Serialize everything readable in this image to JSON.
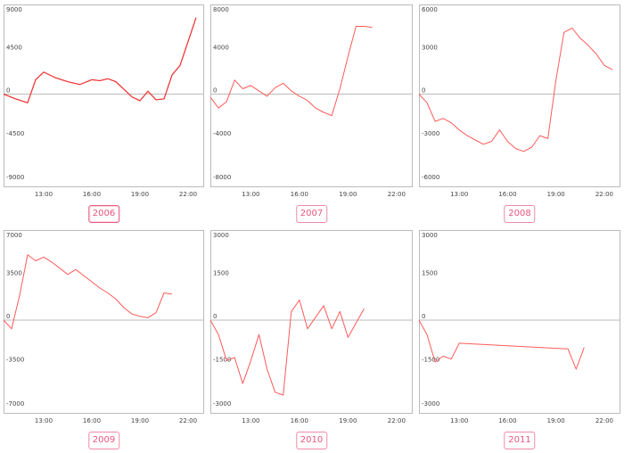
{
  "colors": {
    "line": "#ff5a5a",
    "line_active": "#f03a3a",
    "frame": "#bbbbbb",
    "zero_line": "#bbbbbb",
    "badge_border": "#f08aa6",
    "badge_text": "#e9557e"
  },
  "active_year": "2006",
  "chart_data": [
    {
      "type": "line",
      "title": "2006",
      "ylim": [
        -9000,
        9000
      ],
      "yticks": [
        9000,
        4500,
        0,
        -4500,
        -9000
      ],
      "xlim": [
        10.5,
        23.0
      ],
      "xticks": [
        13,
        16,
        19,
        22
      ],
      "xtick_labels": [
        "13:00",
        "16:00",
        "19:00",
        "22:00"
      ],
      "x": [
        10.5,
        11.25,
        12.0,
        12.5,
        13.0,
        13.75,
        14.5,
        15.25,
        16.0,
        16.5,
        17.0,
        17.5,
        18.0,
        18.5,
        19.0,
        19.5,
        20.0,
        20.5,
        21.0,
        21.5,
        22.0,
        22.5
      ],
      "values": [
        0,
        -500,
        -900,
        1500,
        2300,
        1700,
        1300,
        1000,
        1500,
        1400,
        1600,
        1300,
        500,
        -300,
        -700,
        300,
        -600,
        -500,
        2000,
        3000,
        5500,
        8000
      ]
    },
    {
      "type": "line",
      "title": "2007",
      "ylim": [
        -8000,
        8000
      ],
      "yticks": [
        8000,
        4000,
        0,
        -4000,
        -8000
      ],
      "xlim": [
        10.5,
        23.0
      ],
      "xticks": [
        13,
        16,
        19,
        22
      ],
      "xtick_labels": [
        "13:00",
        "16:00",
        "19:00",
        "22:00"
      ],
      "x": [
        10.5,
        11.0,
        11.5,
        12.0,
        12.5,
        13.0,
        13.5,
        14.0,
        14.5,
        15.0,
        15.5,
        16.0,
        16.5,
        17.0,
        17.5,
        18.0,
        18.5,
        19.0,
        19.5,
        20.0,
        20.5
      ],
      "values": [
        -300,
        -1300,
        -700,
        1300,
        500,
        800,
        300,
        -200,
        600,
        1000,
        300,
        -200,
        -600,
        -1300,
        -1700,
        -2000,
        500,
        3500,
        6300,
        6300,
        6200
      ]
    },
    {
      "type": "line",
      "title": "2008",
      "ylim": [
        -6000,
        6000
      ],
      "yticks": [
        6000,
        3000,
        0,
        -3000,
        -6000
      ],
      "xlim": [
        10.5,
        23.0
      ],
      "xticks": [
        13,
        16,
        19,
        22
      ],
      "xtick_labels": [
        "13:00",
        "16:00",
        "19:00",
        "22:00"
      ],
      "x": [
        10.5,
        11.0,
        11.5,
        12.0,
        12.5,
        13.0,
        13.5,
        14.0,
        14.5,
        15.0,
        15.5,
        16.0,
        16.5,
        17.0,
        17.5,
        18.0,
        18.5,
        19.0,
        19.5,
        20.0,
        20.5,
        21.0,
        21.5,
        22.0,
        22.5
      ],
      "values": [
        0,
        -600,
        -1900,
        -1700,
        -2000,
        -2500,
        -2900,
        -3200,
        -3500,
        -3300,
        -2500,
        -3300,
        -3800,
        -4000,
        -3700,
        -2900,
        -3100,
        1000,
        4300,
        4600,
        3900,
        3400,
        2800,
        2000,
        1700
      ]
    },
    {
      "type": "line",
      "title": "2009",
      "ylim": [
        -7000,
        7000
      ],
      "yticks": [
        7000,
        3500,
        0,
        -3500,
        -7000
      ],
      "xlim": [
        10.5,
        23.0
      ],
      "xticks": [
        13,
        16,
        19,
        22
      ],
      "xtick_labels": [
        "13:00",
        "16:00",
        "19:00",
        "22:00"
      ],
      "x": [
        10.5,
        11.0,
        11.5,
        12.0,
        12.5,
        13.0,
        13.5,
        14.0,
        14.5,
        15.0,
        15.5,
        16.0,
        16.5,
        17.0,
        17.5,
        18.0,
        18.5,
        19.0,
        19.5,
        20.0,
        20.5,
        21.0
      ],
      "values": [
        0,
        -700,
        2000,
        5300,
        4800,
        5100,
        4700,
        4200,
        3700,
        4100,
        3600,
        3100,
        2600,
        2200,
        1700,
        1000,
        500,
        300,
        200,
        600,
        2200,
        2100
      ]
    },
    {
      "type": "line",
      "title": "2010",
      "ylim": [
        -3000,
        3000
      ],
      "yticks": [
        3000,
        1500,
        0,
        -1500,
        -3000
      ],
      "xlim": [
        10.5,
        23.0
      ],
      "xticks": [
        13,
        16,
        19,
        22
      ],
      "xtick_labels": [
        "13:00",
        "16:00",
        "19:00",
        "22:00"
      ],
      "x": [
        10.5,
        11.0,
        11.5,
        12.0,
        12.5,
        13.0,
        13.5,
        14.0,
        14.5,
        15.0,
        15.5,
        16.0,
        16.5,
        17.0,
        17.5,
        18.0,
        18.5,
        19.0,
        19.5,
        20.0
      ],
      "values": [
        0,
        -500,
        -1400,
        -1300,
        -2200,
        -1400,
        -500,
        -1700,
        -2500,
        -2600,
        300,
        700,
        -300,
        100,
        500,
        -300,
        300,
        -600,
        -100,
        400
      ]
    },
    {
      "type": "line",
      "title": "2011",
      "ylim": [
        -3000,
        3000
      ],
      "yticks": [
        3000,
        1500,
        0,
        -1500,
        -3000
      ],
      "xlim": [
        10.5,
        23.0
      ],
      "xticks": [
        13,
        16,
        19,
        22
      ],
      "xtick_labels": [
        "13:00",
        "16:00",
        "19:00",
        "22:00"
      ],
      "x": [
        10.5,
        11.0,
        11.5,
        12.0,
        12.5,
        13.0,
        19.75,
        20.25,
        20.75
      ],
      "values": [
        0,
        -500,
        -1450,
        -1250,
        -1350,
        -800,
        -1000,
        -1700,
        -950
      ]
    }
  ]
}
